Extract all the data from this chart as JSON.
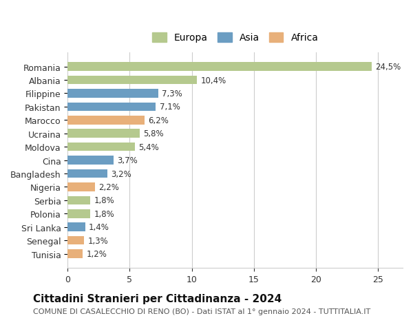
{
  "categories": [
    "Romania",
    "Albania",
    "Filippine",
    "Pakistan",
    "Marocco",
    "Ucraina",
    "Moldova",
    "Cina",
    "Bangladesh",
    "Nigeria",
    "Serbia",
    "Polonia",
    "Sri Lanka",
    "Senegal",
    "Tunisia"
  ],
  "values": [
    24.5,
    10.4,
    7.3,
    7.1,
    6.2,
    5.8,
    5.4,
    3.7,
    3.2,
    2.2,
    1.8,
    1.8,
    1.4,
    1.3,
    1.2
  ],
  "labels": [
    "24,5%",
    "10,4%",
    "7,3%",
    "7,1%",
    "6,2%",
    "5,8%",
    "5,4%",
    "3,7%",
    "3,2%",
    "2,2%",
    "1,8%",
    "1,8%",
    "1,4%",
    "1,3%",
    "1,2%"
  ],
  "continent": [
    "Europa",
    "Europa",
    "Asia",
    "Asia",
    "Africa",
    "Europa",
    "Europa",
    "Asia",
    "Asia",
    "Africa",
    "Europa",
    "Europa",
    "Asia",
    "Africa",
    "Africa"
  ],
  "colors": {
    "Europa": "#b5c98e",
    "Asia": "#6b9dc2",
    "Africa": "#e8b07a"
  },
  "legend_colors": {
    "Europa": "#b5c98e",
    "Asia": "#6b9dc2",
    "Africa": "#e8b07a"
  },
  "title": "Cittadini Stranieri per Cittadinanza - 2024",
  "subtitle": "COMUNE DI CASALECCHIO DI RENO (BO) - Dati ISTAT al 1° gennaio 2024 - TUTTITALIA.IT",
  "xlim": [
    0,
    27
  ],
  "xticks": [
    0,
    5,
    10,
    15,
    20,
    25
  ],
  "background_color": "#ffffff",
  "grid_color": "#cccccc",
  "bar_height": 0.65,
  "title_fontsize": 11,
  "subtitle_fontsize": 8,
  "label_fontsize": 8.5,
  "tick_fontsize": 9
}
